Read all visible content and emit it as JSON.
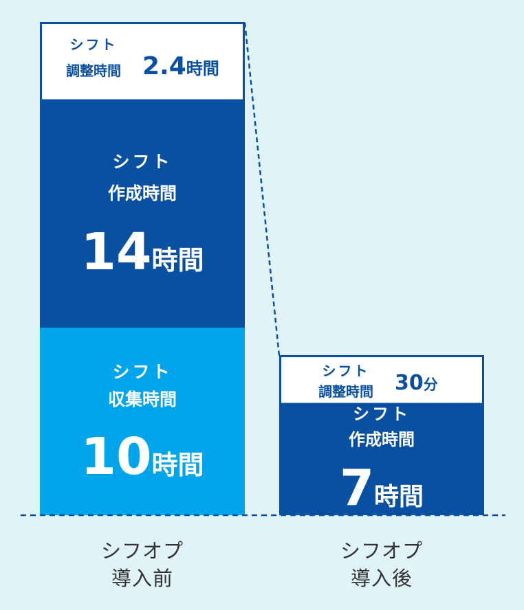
{
  "chart_data": {
    "type": "bar",
    "stacked": true,
    "categories": [
      "シフオプ\n導入前",
      "シフオプ\n導入後"
    ],
    "unit": "hours",
    "series": [
      {
        "key": "collect",
        "label_top": "シフト",
        "label_bottom": "収集時間",
        "color": "#00a4ea",
        "values": [
          10,
          0
        ],
        "display": [
          {
            "num": "10",
            "unit": "時間"
          },
          null
        ]
      },
      {
        "key": "create",
        "label_top": "シフト",
        "label_bottom": "作成時間",
        "color": "#0a50a1",
        "values": [
          14,
          7
        ],
        "display": [
          {
            "num": "14",
            "unit": "時間"
          },
          {
            "num": "7",
            "unit": "時間"
          }
        ]
      },
      {
        "key": "adjust",
        "label_top": "シフト",
        "label_bottom": "調整時間",
        "color": "#ffffff",
        "values": [
          2.4,
          0.5
        ],
        "display": [
          {
            "num": "2.4",
            "unit": "時間"
          },
          {
            "num": "30",
            "unit": "分"
          }
        ]
      }
    ],
    "colors": {
      "background": "#dff3f8",
      "dark_blue": "#0a50a1",
      "light_blue": "#00a4ea",
      "white": "#ffffff",
      "axis_text": "#333333"
    }
  }
}
